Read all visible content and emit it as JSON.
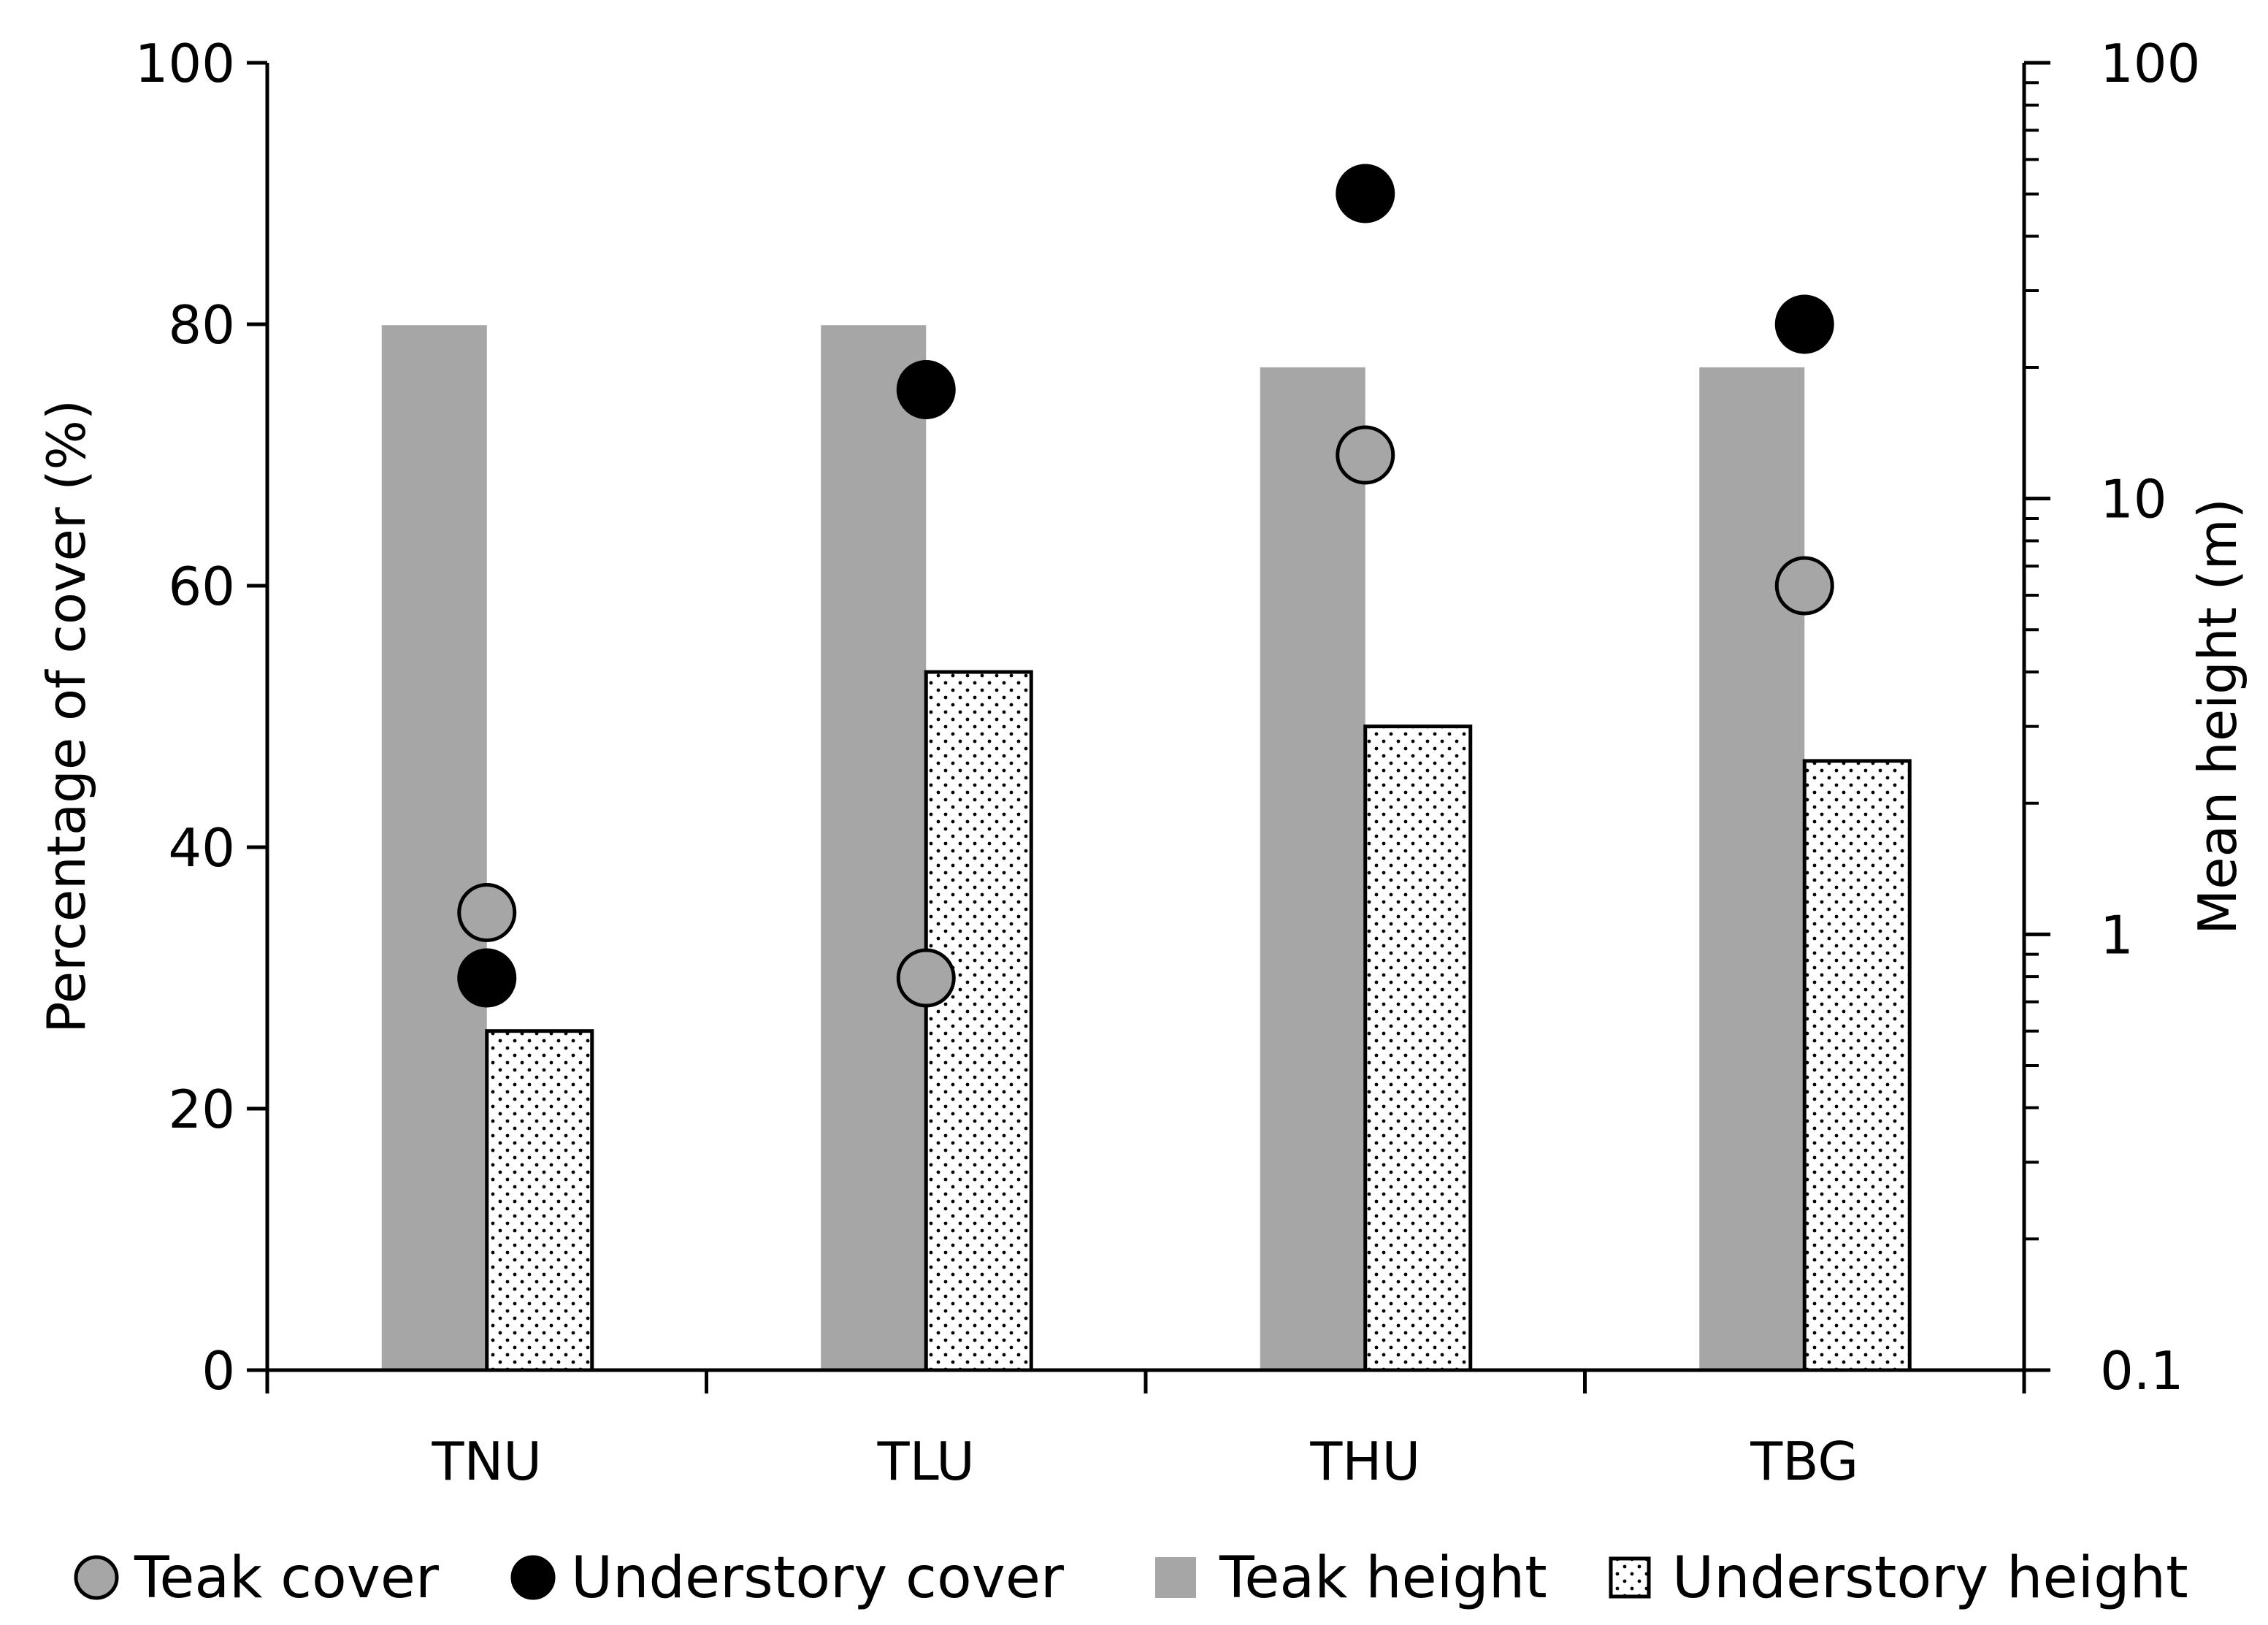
{
  "chart_data": {
    "type": "bar",
    "title": "",
    "categories": [
      "TNU",
      "TLU",
      "THU",
      "TBG"
    ],
    "xlabel": "",
    "ylabel": "Percentage of cover (%)",
    "ylim": [
      0,
      100
    ],
    "yticks": [
      "0",
      "20",
      "40",
      "60",
      "80",
      "100"
    ],
    "y2label": "Mean height (m)",
    "y2scale": "log",
    "y2lim": [
      0.1,
      100
    ],
    "y2ticks": [
      "0.1",
      "1",
      "10",
      "100"
    ],
    "grid": false,
    "legend_position": "bottom",
    "series": [
      {
        "name": "Teak height",
        "kind": "bar",
        "axis": "right",
        "values": [
          25,
          25,
          20,
          20
        ],
        "color": "#a6a6a6"
      },
      {
        "name": "Understory height",
        "kind": "bar",
        "axis": "right",
        "values": [
          0.6,
          4,
          3,
          2.5
        ],
        "color": "#ffffff",
        "pattern": "dots"
      },
      {
        "name": "Teak cover",
        "kind": "scatter",
        "axis": "left",
        "values": [
          35,
          30,
          70,
          60
        ],
        "color": "#a6a6a6"
      },
      {
        "name": "Understory cover",
        "kind": "scatter",
        "axis": "left",
        "values": [
          30,
          75,
          90,
          80
        ],
        "color": "#000000"
      }
    ],
    "legend": [
      "Teak cover",
      "Understory cover",
      "Teak height",
      "Understory height"
    ]
  }
}
